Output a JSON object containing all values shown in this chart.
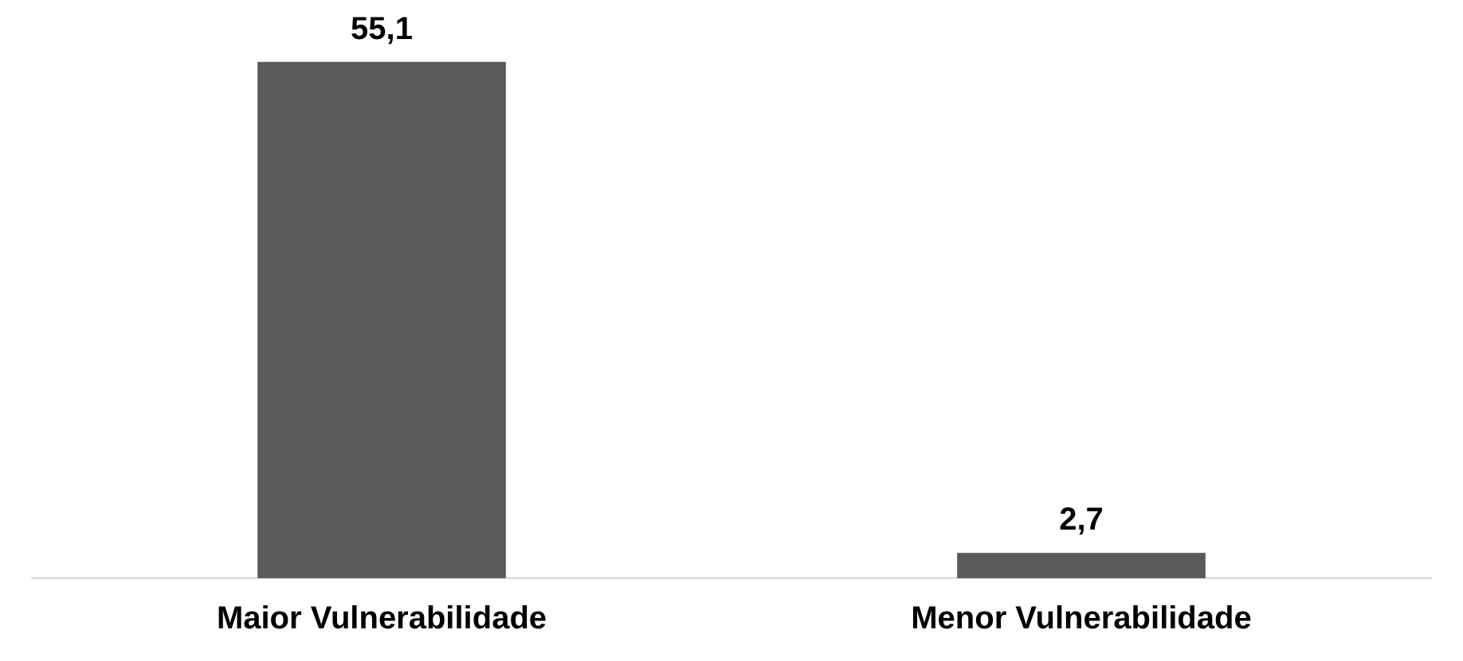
{
  "chart_data": {
    "type": "bar",
    "categories": [
      "Maior Vulnerabilidade",
      "Menor Vulnerabilidade"
    ],
    "values": [
      55.1,
      2.7
    ],
    "value_labels": [
      "55,1",
      "2,7"
    ],
    "color": "#5a5a5a",
    "grid": false,
    "legend": false
  }
}
